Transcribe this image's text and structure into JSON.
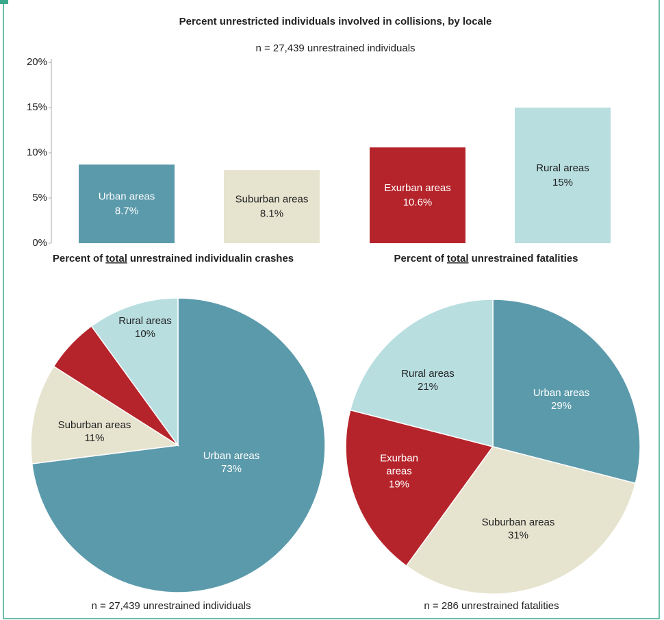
{
  "chart_data": [
    {
      "type": "bar",
      "title": "Percent unrestricted individuals involved in collisions, by locale",
      "subtitle": "n = 27,439 unrestrained individuals",
      "categories": [
        "Urban areas",
        "Suburban areas",
        "Exurban areas",
        "Rural areas"
      ],
      "values": [
        8.7,
        8.1,
        10.6,
        15
      ],
      "value_labels": [
        "8.7%",
        "8.1%",
        "10.6%",
        "15%"
      ],
      "colors": [
        "#5b9aab",
        "#e6e4cf",
        "#b6242b",
        "#b8dee0"
      ],
      "ylim": [
        0,
        21
      ],
      "yticks": [
        {
          "value": 0,
          "label": "0%"
        },
        {
          "value": 5,
          "label": "5%"
        },
        {
          "value": 10,
          "label": "10%"
        },
        {
          "value": 15,
          "label": "15%"
        },
        {
          "value": 20,
          "label": "20%"
        }
      ],
      "grid": false
    },
    {
      "type": "pie",
      "title": {
        "before": "Percent of",
        "emphasis": "total",
        "after": "unrestrained individualin crashes"
      },
      "footnote": "n = 27,439 unrestrained individuals",
      "categories": [
        "Urban areas",
        "Suburban areas",
        "Exurban areas",
        "Rural areas"
      ],
      "values": [
        73,
        11,
        6,
        10
      ],
      "value_labels": [
        "73%",
        "11%",
        "6%",
        "10%"
      ],
      "colors": [
        "#5b9aab",
        "#e6e4cf",
        "#b6242b",
        "#b8dee0"
      ]
    },
    {
      "type": "pie",
      "title": {
        "before": "Percent of",
        "emphasis": "total",
        "after": "unrestrained fatalities"
      },
      "footnote": "n = 286 unrestrained fatalities",
      "categories": [
        "Urban areas",
        "Suburban areas",
        "Exurban areas",
        "Rural areas"
      ],
      "values": [
        29,
        31,
        19,
        21
      ],
      "value_labels": [
        "29%",
        "31%",
        "19%",
        "21%"
      ],
      "colors": [
        "#5b9aab",
        "#e6e4cf",
        "#b6242b",
        "#b8dee0"
      ]
    }
  ]
}
